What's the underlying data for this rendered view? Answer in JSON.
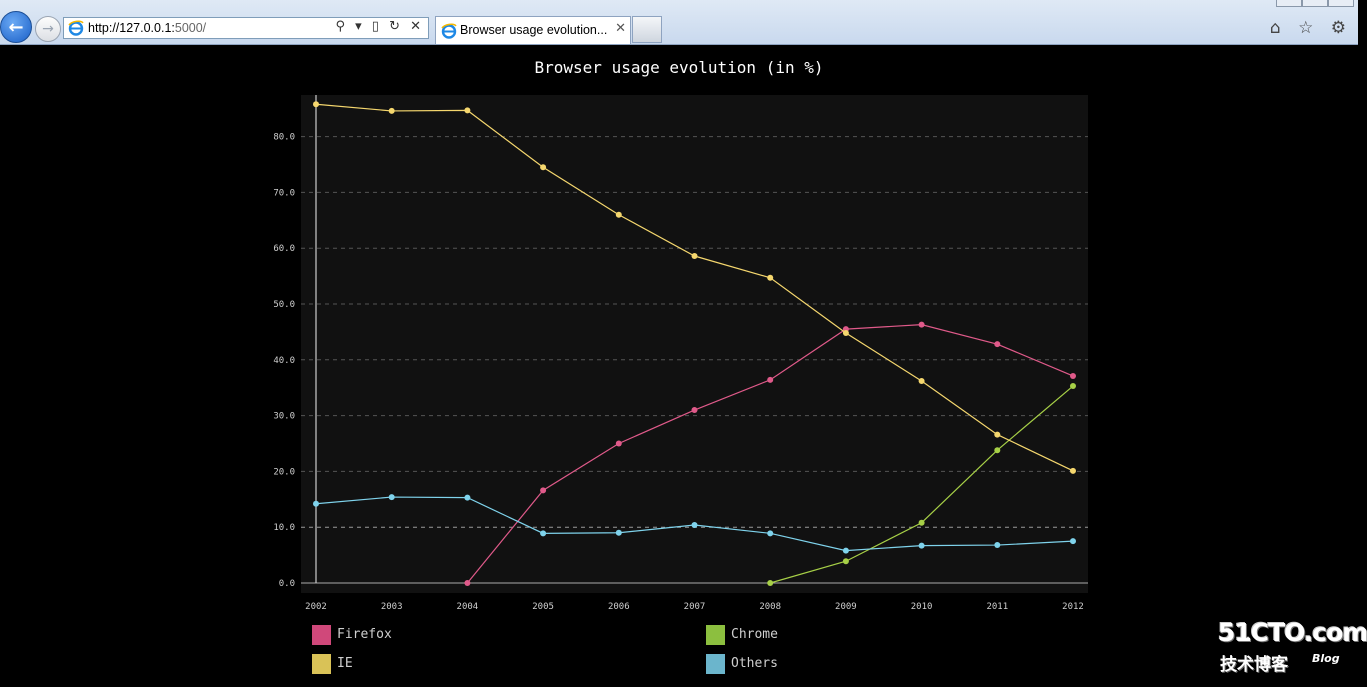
{
  "browser": {
    "url_host": "http://127.0.0.1:",
    "url_port": "5000/",
    "tab_title": "Browser usage evolution...",
    "address_icons": "⚲ ▾ ▯ ↻ ✕",
    "tab_close": "✕",
    "right_icons": "⌂ ☆ ⚙"
  },
  "chart_data": {
    "type": "line",
    "title": "Browser usage evolution (in %)",
    "xlabel": "",
    "ylabel": "",
    "categories": [
      "2002",
      "2003",
      "2004",
      "2005",
      "2006",
      "2007",
      "2008",
      "2009",
      "2010",
      "2011",
      "2012"
    ],
    "ylim": [
      0,
      85.8
    ],
    "yticks": [
      "0.0",
      "10.0",
      "20.0",
      "30.0",
      "40.0",
      "50.0",
      "60.0",
      "70.0",
      "80.0"
    ],
    "grid": true,
    "legend_position": "bottom",
    "series": [
      {
        "name": "Firefox",
        "color": "#e05a8a",
        "legend_color": "#d0487a",
        "values": [
          null,
          null,
          0,
          16.6,
          25,
          31,
          36.4,
          45.5,
          46.3,
          42.8,
          37.1
        ]
      },
      {
        "name": "Chrome",
        "color": "#a7d047",
        "legend_color": "#8cbf3f",
        "values": [
          null,
          null,
          null,
          null,
          null,
          null,
          0,
          3.9,
          10.8,
          23.8,
          35.3
        ]
      },
      {
        "name": "IE",
        "color": "#f5d76e",
        "legend_color": "#d9c257",
        "values": [
          85.8,
          84.6,
          84.7,
          74.5,
          66,
          58.6,
          54.7,
          44.8,
          36.2,
          26.6,
          20.1
        ]
      },
      {
        "name": "Others",
        "color": "#7fd3ec",
        "legend_color": "#6bb5cc",
        "values": [
          14.2,
          15.4,
          15.3,
          8.9,
          9,
          10.4,
          8.9,
          5.8,
          6.7,
          6.8,
          7.5
        ]
      }
    ]
  },
  "watermark": {
    "main": "51CTO.com",
    "sub": "技术博客",
    "blog": "Blog"
  }
}
